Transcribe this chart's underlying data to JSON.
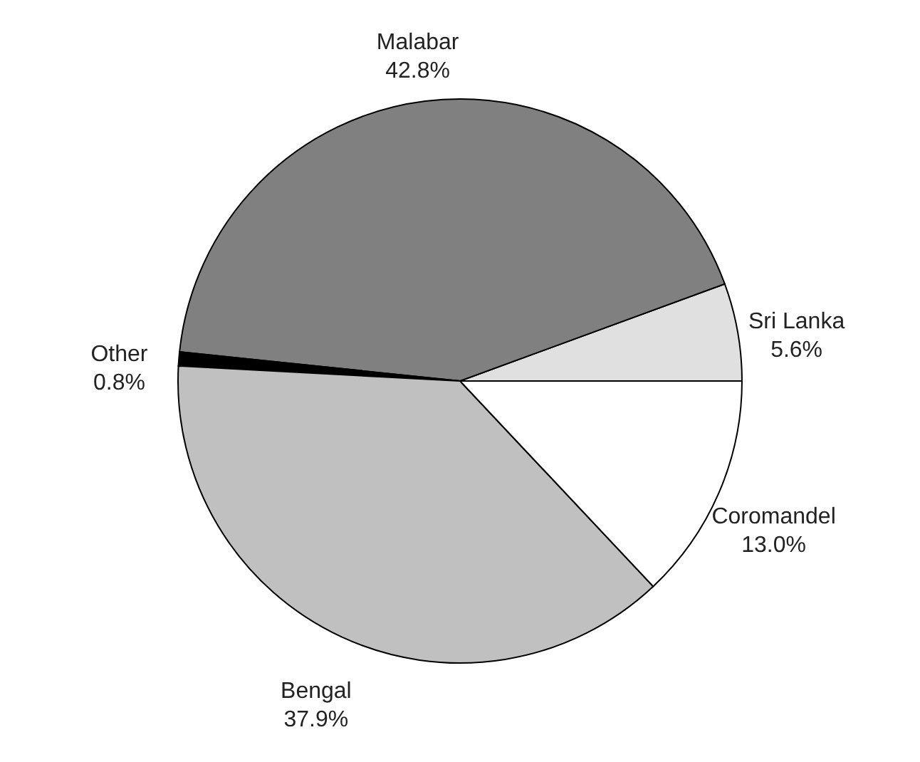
{
  "chart_data": {
    "type": "pie",
    "categories": [
      "Sri Lanka",
      "Malabar",
      "Other",
      "Bengal",
      "Coromandel"
    ],
    "values": [
      5.6,
      42.8,
      0.8,
      37.9,
      13.0
    ],
    "value_labels": [
      "5.6%",
      "42.8%",
      "0.8%",
      "37.9%",
      "13.0%"
    ],
    "colors": [
      "#e0e0e0",
      "#808080",
      "#000000",
      "#c0c0c0",
      "#ffffff"
    ]
  }
}
